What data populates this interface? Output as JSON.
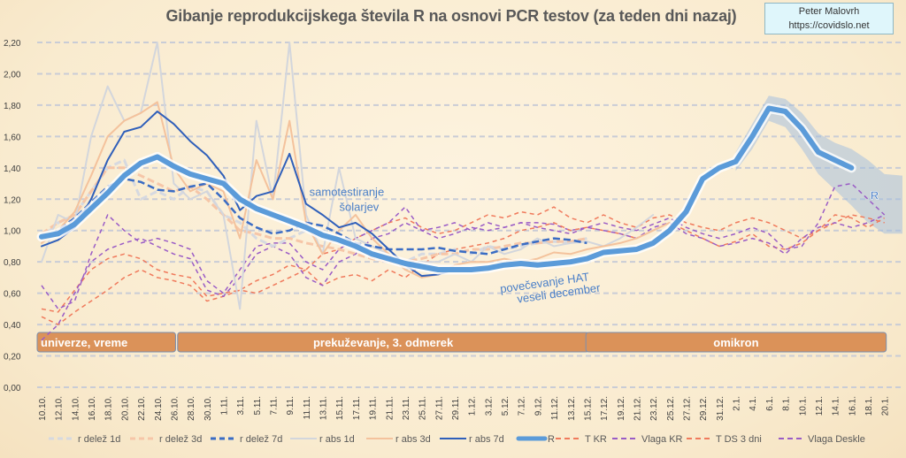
{
  "chart_data": {
    "type": "line",
    "title": "Gibanje reprodukcijskega števila R na osnovi PCR testov (za teden dni nazaj)",
    "author": {
      "name": "Peter Malovrh",
      "url": "https://covidslo.net"
    },
    "ylim": [
      0,
      2.2
    ],
    "yticks": [
      "0,00",
      "0,20",
      "0,40",
      "0,60",
      "0,80",
      "1,00",
      "1,20",
      "1,40",
      "1,60",
      "1,80",
      "2,00",
      "2,20"
    ],
    "grid": true,
    "legend_position": "bottom",
    "categories": [
      "10.10.",
      "12.10.",
      "14.10.",
      "16.10.",
      "18.10.",
      "20.10.",
      "22.10.",
      "24.10.",
      "26.10.",
      "28.10.",
      "30.10.",
      "1.11.",
      "3.11.",
      "5.11.",
      "7.11.",
      "9.11.",
      "11.11.",
      "13.11.",
      "15.11.",
      "17.11.",
      "19.11.",
      "21.11.",
      "23.11.",
      "25.11.",
      "27.11.",
      "29.11.",
      "1.12.",
      "3.12.",
      "5.12.",
      "7.12.",
      "9.12.",
      "11.12.",
      "13.12.",
      "15.12.",
      "17.12.",
      "19.12.",
      "21.12.",
      "23.12.",
      "25.12.",
      "27.12.",
      "29.12.",
      "31.12.",
      "2.1.",
      "4.1.",
      "6.1.",
      "8.1.",
      "10.1.",
      "12.1.",
      "14.1.",
      "16.1.",
      "18.1.",
      "20.1."
    ],
    "series": [
      {
        "name": "r delež 1d",
        "color": "#d6d9e0",
        "style": "dash",
        "width": 3,
        "values": [
          0.95,
          1.05,
          1.1,
          1.25,
          1.4,
          1.45,
          1.2,
          1.25,
          1.2,
          1.28,
          1.25,
          1.1,
          1.05,
          0.95,
          0.9,
          0.95,
          1.0,
          0.95,
          0.92,
          0.9,
          0.85,
          0.82,
          0.8,
          0.85,
          0.85,
          0.88,
          0.85,
          0.9,
          0.88,
          0.9,
          0.92,
          0.93,
          0.92,
          0.95,
          null,
          null,
          null,
          null,
          null,
          null,
          null,
          null,
          null,
          null,
          null,
          null,
          null,
          null,
          null,
          null,
          null,
          null
        ]
      },
      {
        "name": "r delež 3d",
        "color": "#f6c6a8",
        "style": "dash",
        "width": 3,
        "values": [
          0.98,
          1.05,
          1.1,
          1.25,
          1.4,
          1.4,
          1.35,
          1.3,
          1.25,
          1.28,
          1.2,
          1.1,
          1.0,
          0.98,
          0.95,
          0.95,
          0.92,
          0.9,
          0.88,
          0.85,
          0.82,
          0.8,
          0.8,
          0.82,
          0.85,
          0.85,
          0.88,
          0.88,
          0.9,
          0.92,
          0.92,
          0.93,
          0.93,
          0.95,
          null,
          null,
          null,
          null,
          null,
          null,
          null,
          null,
          null,
          null,
          null,
          null,
          null,
          null,
          null,
          null,
          null,
          null
        ]
      },
      {
        "name": "r delež 7d",
        "color": "#3a6cc4",
        "style": "dash",
        "width": 2.5,
        "values": [
          0.95,
          1.0,
          1.08,
          1.18,
          1.28,
          1.33,
          1.31,
          1.26,
          1.25,
          1.28,
          1.3,
          1.2,
          1.08,
          1.02,
          0.98,
          1.0,
          1.05,
          1.03,
          0.98,
          0.92,
          0.9,
          0.88,
          0.88,
          0.88,
          0.89,
          0.87,
          0.86,
          0.85,
          0.88,
          0.91,
          0.93,
          0.95,
          0.94,
          0.92,
          null,
          null,
          null,
          null,
          null,
          null,
          null,
          null,
          null,
          null,
          null,
          null,
          null,
          null,
          null,
          null,
          null,
          null
        ]
      },
      {
        "name": "r abs 1d",
        "color": "#d3d6dc",
        "style": "solid",
        "width": 2,
        "values": [
          0.8,
          1.1,
          1.05,
          1.6,
          1.92,
          1.7,
          1.75,
          2.2,
          1.3,
          1.2,
          1.25,
          1.1,
          0.5,
          1.7,
          1.2,
          2.2,
          1.1,
          0.85,
          1.4,
          0.95,
          0.9,
          0.85,
          0.75,
          0.8,
          0.8,
          0.85,
          0.8,
          0.9,
          0.85,
          0.88,
          0.95,
          0.9,
          0.92,
          0.93,
          0.9,
          0.95,
          1.02,
          1.1,
          null,
          null,
          null,
          null,
          null,
          null,
          null,
          null,
          null,
          null,
          null,
          null,
          null,
          null
        ]
      },
      {
        "name": "r abs 3d",
        "color": "#f4c29c",
        "style": "solid",
        "width": 2,
        "values": [
          0.92,
          1.0,
          1.12,
          1.35,
          1.6,
          1.7,
          1.75,
          1.82,
          1.4,
          1.25,
          1.3,
          1.25,
          0.95,
          1.45,
          1.2,
          1.7,
          1.05,
          0.85,
          1.0,
          1.1,
          0.95,
          0.85,
          0.75,
          0.7,
          0.72,
          0.78,
          0.8,
          0.8,
          0.82,
          0.8,
          0.82,
          0.86,
          0.85,
          0.88,
          0.9,
          0.92,
          0.95,
          1.0,
          1.05,
          null,
          null,
          null,
          null,
          null,
          null,
          null,
          null,
          null,
          null,
          null,
          null,
          null
        ]
      },
      {
        "name": "r abs 7d",
        "color": "#2f5fba",
        "style": "solid",
        "width": 2,
        "values": [
          0.9,
          0.94,
          1.02,
          1.2,
          1.45,
          1.63,
          1.66,
          1.76,
          1.68,
          1.57,
          1.48,
          1.35,
          1.13,
          1.22,
          1.25,
          1.49,
          1.17,
          1.1,
          1.02,
          1.05,
          0.98,
          0.88,
          0.78,
          0.71,
          0.72,
          0.75,
          null,
          null,
          null,
          null,
          null,
          null,
          null,
          null,
          null,
          null,
          null,
          null,
          null,
          null,
          null,
          null,
          null,
          null,
          null,
          null,
          null,
          null,
          null,
          null,
          null,
          null
        ]
      },
      {
        "name": "R",
        "color": "#5b9bd9",
        "style": "solid",
        "width": 6,
        "values": [
          0.96,
          0.98,
          1.04,
          1.14,
          1.24,
          1.35,
          1.43,
          1.47,
          1.41,
          1.36,
          1.33,
          1.3,
          1.2,
          1.14,
          1.1,
          1.06,
          1.02,
          0.97,
          0.94,
          0.9,
          0.85,
          0.82,
          0.79,
          0.77,
          0.75,
          0.75,
          0.75,
          0.76,
          0.78,
          0.79,
          0.78,
          0.79,
          0.8,
          0.82,
          0.86,
          0.87,
          0.88,
          0.92,
          1.0,
          1.12,
          1.33,
          1.4,
          1.44,
          1.6,
          1.78,
          1.76,
          1.65,
          1.5,
          1.45,
          1.4,
          null,
          null
        ]
      },
      {
        "name": "T KR",
        "color": "#f07a5c",
        "style": "dash",
        "width": 1.5,
        "values": [
          0.5,
          0.48,
          0.62,
          0.75,
          0.82,
          0.85,
          0.82,
          0.75,
          0.72,
          0.7,
          0.58,
          0.6,
          0.62,
          0.68,
          0.72,
          0.78,
          0.75,
          0.85,
          0.88,
          0.95,
          1.0,
          1.05,
          1.08,
          1.02,
          0.98,
          1.0,
          1.05,
          1.1,
          1.08,
          1.12,
          1.1,
          1.15,
          1.08,
          1.05,
          1.1,
          1.05,
          1.02,
          1.08,
          1.1,
          1.05,
          1.02,
          1.0,
          1.05,
          1.08,
          1.05,
          1.0,
          0.95,
          1.0,
          1.05,
          1.1,
          1.08,
          1.05
        ]
      },
      {
        "name": "Vlaga KR",
        "color": "#9a5cc6",
        "style": "dash",
        "width": 1.5,
        "values": [
          0.65,
          0.5,
          0.55,
          0.85,
          1.1,
          1.0,
          0.92,
          0.95,
          0.92,
          0.88,
          0.68,
          0.6,
          0.75,
          0.9,
          0.92,
          0.92,
          0.8,
          0.75,
          0.88,
          0.95,
          1.0,
          1.05,
          1.15,
          1.0,
          0.95,
          0.98,
          1.02,
          1.0,
          1.02,
          1.05,
          1.05,
          1.04,
          1.0,
          1.02,
          1.05,
          1.02,
          1.0,
          1.04,
          1.08,
          1.02,
          0.98,
          0.95,
          0.98,
          1.02,
          0.98,
          0.88,
          0.9,
          1.05,
          1.28,
          1.3,
          1.2,
          1.1
        ]
      },
      {
        "name": "T DS 3 dni",
        "color": "#f07a5c",
        "style": "dash",
        "width": 1.5,
        "values": [
          0.45,
          0.4,
          0.48,
          0.55,
          0.62,
          0.7,
          0.75,
          0.7,
          0.68,
          0.65,
          0.55,
          0.58,
          0.62,
          0.6,
          0.65,
          0.7,
          0.75,
          0.65,
          0.7,
          0.72,
          0.68,
          0.75,
          0.7,
          0.78,
          0.85,
          0.88,
          0.9,
          0.92,
          0.95,
          1.0,
          1.02,
          1.05,
          1.0,
          1.02,
          1.0,
          0.98,
          0.95,
          1.0,
          1.05,
          1.0,
          0.95,
          0.9,
          0.93,
          0.98,
          0.9,
          0.88,
          0.92,
          1.0,
          1.1,
          1.08,
          1.02,
          1.08
        ]
      },
      {
        "name": "Vlaga Deskle",
        "color": "#9a5cc6",
        "style": "dash",
        "width": 1.5,
        "values": [
          0.3,
          0.4,
          0.6,
          0.8,
          0.88,
          0.92,
          0.95,
          0.9,
          0.85,
          0.82,
          0.62,
          0.58,
          0.7,
          0.85,
          0.9,
          0.85,
          0.7,
          0.65,
          0.8,
          0.85,
          0.95,
          0.98,
          1.05,
          1.0,
          1.02,
          1.05,
          1.0,
          1.05,
          1.02,
          1.05,
          1.02,
          1.0,
          0.98,
          1.02,
          1.0,
          0.98,
          0.95,
          1.02,
          1.05,
          0.98,
          0.95,
          0.9,
          0.92,
          0.95,
          0.92,
          0.85,
          0.95,
          1.02,
          1.05,
          1.02,
          1.05,
          1.1
        ]
      }
    ],
    "forecast_band": {
      "from_index": 42,
      "upper": [
        1.5,
        1.68,
        1.86,
        1.84,
        1.75,
        1.62,
        1.56,
        1.52,
        1.45,
        1.36
      ],
      "lower": [
        1.38,
        1.52,
        1.7,
        1.66,
        1.52,
        1.36,
        1.26,
        1.16,
        1.05,
        0.98
      ]
    },
    "phases": [
      {
        "label": "univerze, vreme",
        "from_index": 0,
        "to_index": 8
      },
      {
        "label": "prekuževanje, 3. odmerek",
        "from_index": 8.5,
        "to_index": 33
      },
      {
        "label": "omikron",
        "from_index": 33.2,
        "to_index": 51
      }
    ],
    "annotations": [
      {
        "lines": [
          "samotestiranje",
          "šolarjev"
        ],
        "at_index": 19,
        "value": 1.22
      },
      {
        "lines": [
          "povečevanje HAT",
          "veseli december"
        ],
        "at_index": 31,
        "value": 0.65
      },
      {
        "lines": [
          "R"
        ],
        "at_index": 50.4,
        "value": 1.2
      }
    ]
  }
}
